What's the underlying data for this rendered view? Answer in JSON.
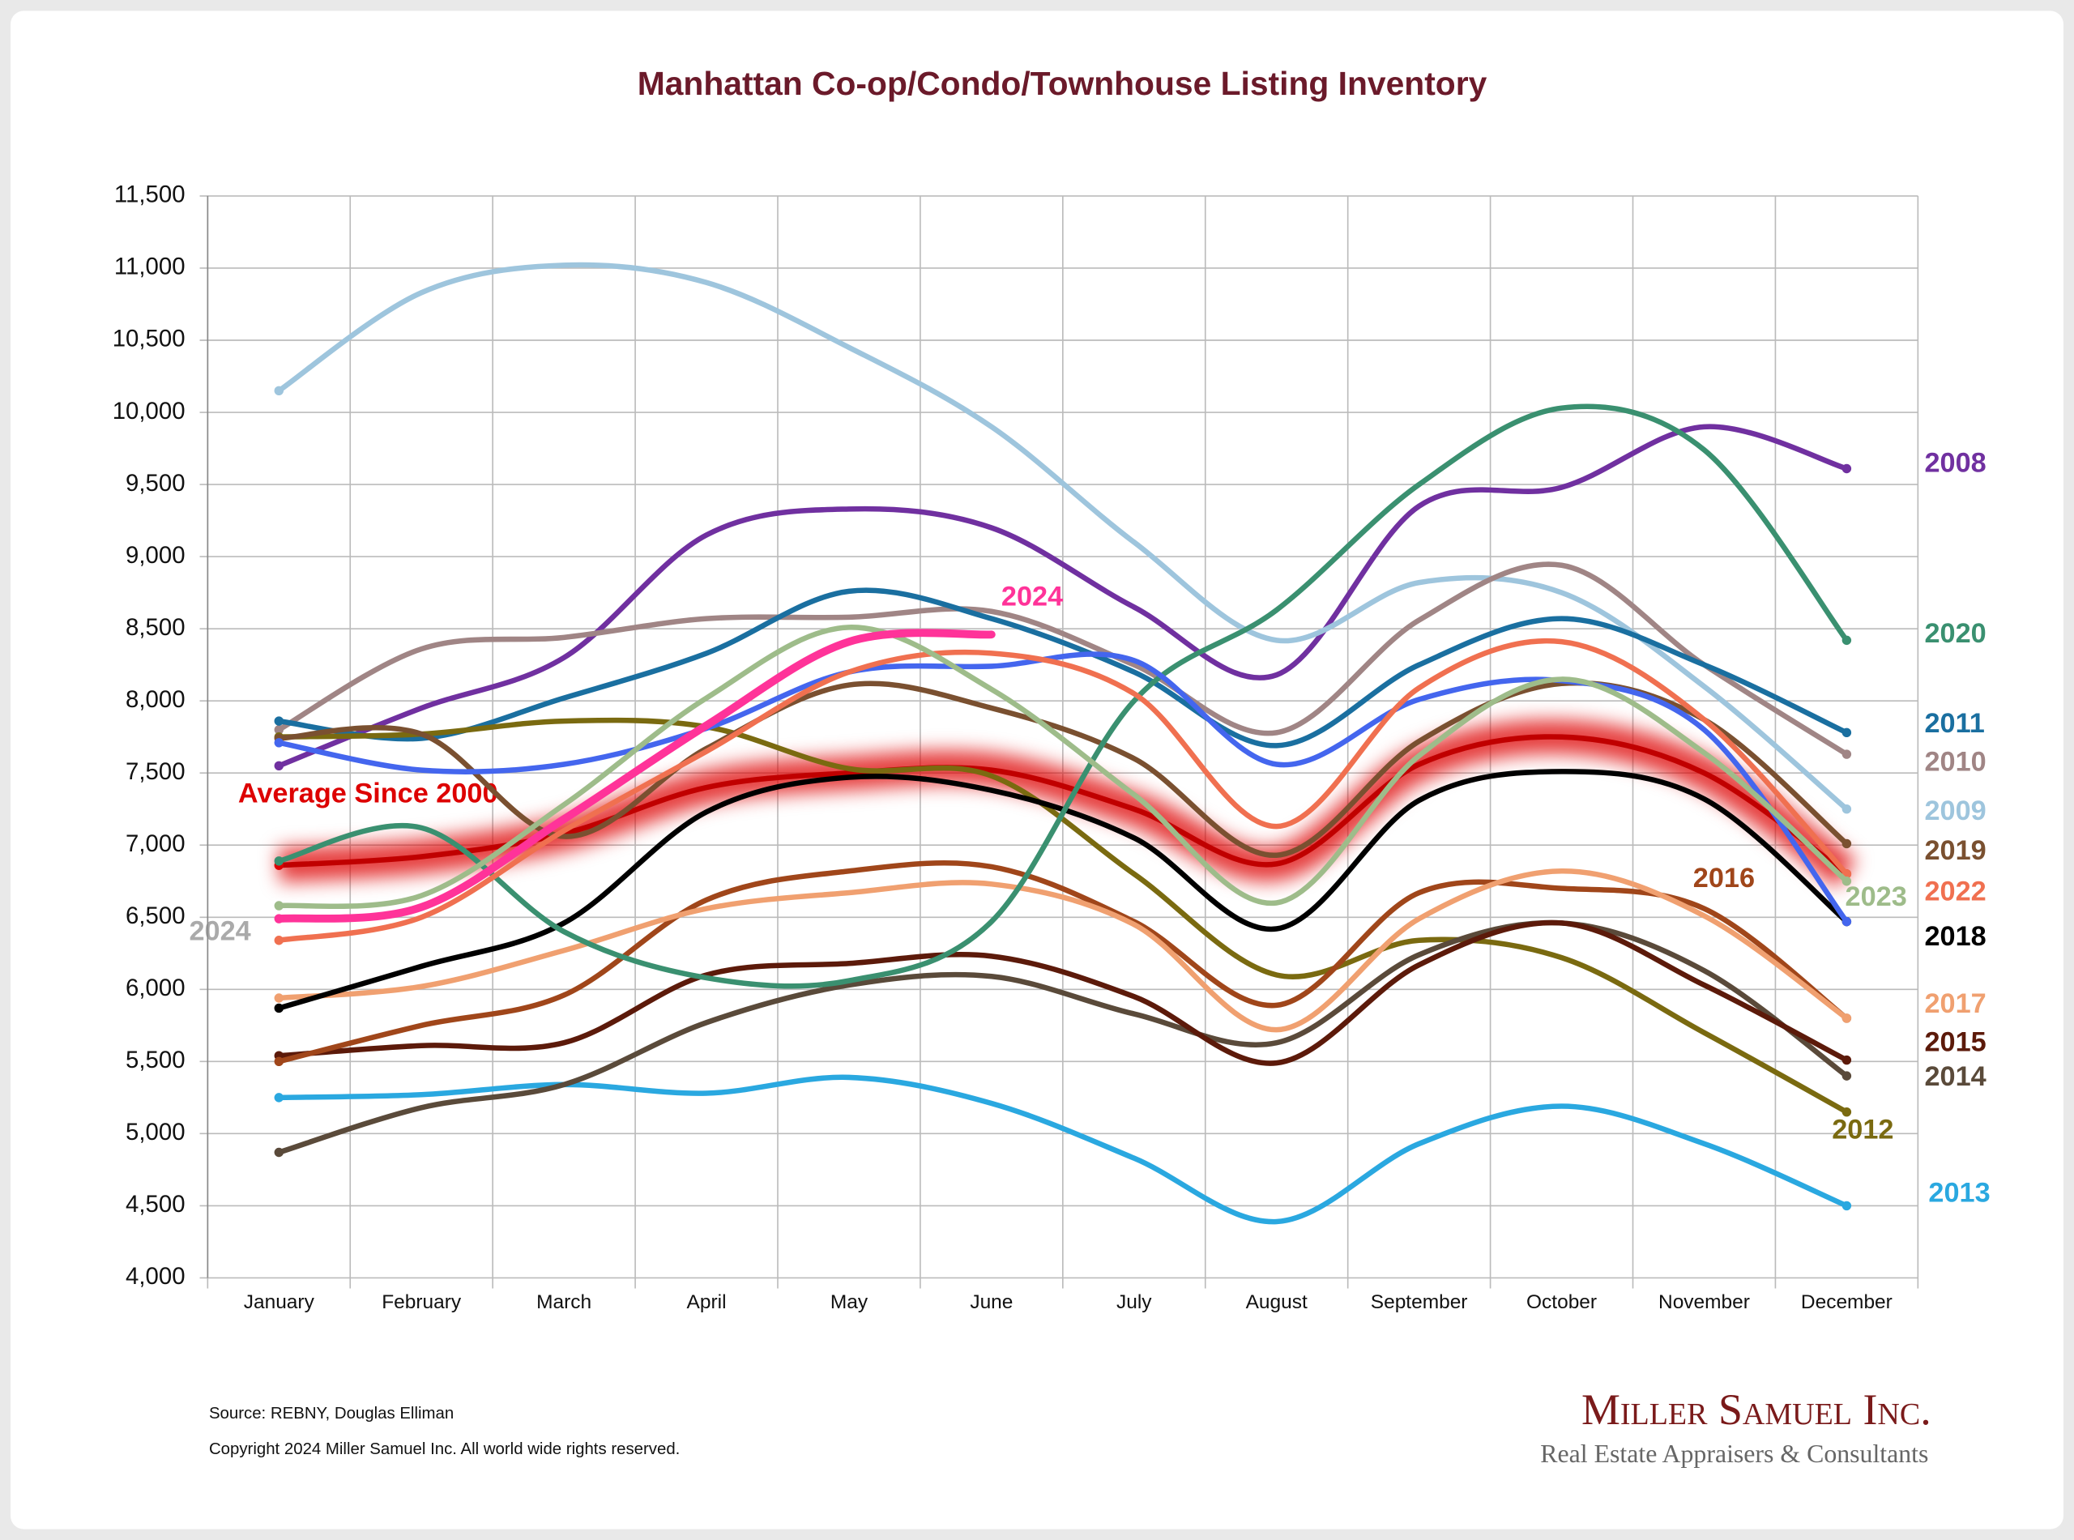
{
  "chart_data": {
    "type": "line",
    "title": "Manhattan Co-op/Condo/Townhouse Listing Inventory",
    "categories": [
      "January",
      "February",
      "March",
      "April",
      "May",
      "June",
      "July",
      "August",
      "September",
      "October",
      "November",
      "December"
    ],
    "ylim": [
      4000,
      11500
    ],
    "yticks": [
      {
        "value": 4000,
        "label": "4,000"
      },
      {
        "value": 4500,
        "label": "4,500"
      },
      {
        "value": 5000,
        "label": "5,000"
      },
      {
        "value": 5500,
        "label": "5,500"
      },
      {
        "value": 6000,
        "label": "6,000"
      },
      {
        "value": 6500,
        "label": "6,500"
      },
      {
        "value": 7000,
        "label": "7,000"
      },
      {
        "value": 7500,
        "label": "7,500"
      },
      {
        "value": 8000,
        "label": "8,000"
      },
      {
        "value": 8500,
        "label": "8,500"
      },
      {
        "value": 9000,
        "label": "9,000"
      },
      {
        "value": 9500,
        "label": "9,500"
      },
      {
        "value": 10000,
        "label": "10,000"
      },
      {
        "value": 10500,
        "label": "10,500"
      },
      {
        "value": 11000,
        "label": "11,000"
      },
      {
        "value": 11500,
        "label": "11,500"
      }
    ],
    "grid": true,
    "series": [
      {
        "name": "2008",
        "color": "#7030a0",
        "values": [
          7550,
          7950,
          8300,
          9150,
          9330,
          9200,
          8650,
          8180,
          9350,
          9480,
          9900,
          9610
        ]
      },
      {
        "name": "2009",
        "color": "#9ec5dd",
        "values": [
          10150,
          10830,
          11020,
          10900,
          10450,
          9900,
          9100,
          8420,
          8820,
          8750,
          8100,
          7250
        ]
      },
      {
        "name": "2010",
        "color": "#a08585",
        "values": [
          7800,
          8360,
          8440,
          8570,
          8580,
          8620,
          8250,
          7780,
          8560,
          8940,
          8250,
          7630
        ]
      },
      {
        "name": "2011",
        "color": "#1a6fa0",
        "values": [
          7860,
          7740,
          8020,
          8330,
          8760,
          8570,
          8200,
          7690,
          8250,
          8570,
          8250,
          7780
        ]
      },
      {
        "name": "2012",
        "color": "#7a6a10",
        "values": [
          7750,
          7770,
          7860,
          7820,
          7530,
          7480,
          6800,
          6100,
          6340,
          6220,
          5700,
          5150
        ]
      },
      {
        "name": "2013",
        "color": "#2aa8e0",
        "values": [
          5250,
          5270,
          5340,
          5280,
          5390,
          5210,
          4830,
          4390,
          4930,
          5190,
          4930,
          4500
        ]
      },
      {
        "name": "2014",
        "color": "#5a4a3a",
        "values": [
          4870,
          5180,
          5340,
          5770,
          6030,
          6090,
          5830,
          5630,
          6240,
          6460,
          6130,
          5400
        ]
      },
      {
        "name": "2015",
        "color": "#5c1a0a",
        "values": [
          5540,
          5610,
          5630,
          6100,
          6180,
          6230,
          5950,
          5490,
          6170,
          6460,
          6030,
          5510
        ]
      },
      {
        "name": "2016",
        "color": "#a0461a",
        "values": [
          5500,
          5750,
          5960,
          6620,
          6820,
          6850,
          6470,
          5890,
          6670,
          6700,
          6560,
          5800
        ]
      },
      {
        "name": "2017",
        "color": "#f0a070",
        "values": [
          5940,
          6020,
          6270,
          6560,
          6670,
          6730,
          6450,
          5720,
          6490,
          6820,
          6510,
          5800
        ]
      },
      {
        "name": "2018",
        "color": "#000000",
        "values": [
          5870,
          6160,
          6460,
          7230,
          7470,
          7380,
          7050,
          6420,
          7310,
          7510,
          7320,
          6470
        ]
      },
      {
        "name": "2019",
        "color": "#7a5030",
        "values": [
          7740,
          7770,
          7060,
          7670,
          8110,
          7950,
          7600,
          6930,
          7720,
          8120,
          7870,
          7010
        ]
      },
      {
        "name": "2020",
        "color": "#3a9070",
        "values": [
          6890,
          7120,
          6400,
          6080,
          6060,
          6470,
          8000,
          8630,
          9500,
          10030,
          9740,
          8420
        ]
      },
      {
        "color": "#4466ee",
        "values": [
          7710,
          7520,
          7560,
          7810,
          8200,
          8240,
          8280,
          7560,
          8010,
          8140,
          7800,
          6470
        ]
      },
      {
        "name": "2022",
        "color": "#f07050",
        "values": [
          6340,
          6500,
          7100,
          7650,
          8200,
          8330,
          8050,
          7130,
          8090,
          8410,
          7870,
          6800
        ]
      },
      {
        "name": "2023",
        "color": "#9ebc8a",
        "values": [
          6580,
          6650,
          7280,
          8020,
          8510,
          8080,
          7350,
          6600,
          7620,
          8150,
          7640,
          6750
        ]
      },
      {
        "name": "2024",
        "color": "#ff3399",
        "values": [
          6490,
          6570,
          7180,
          7830,
          8410,
          8460,
          null,
          null,
          null,
          null,
          null,
          null
        ]
      },
      {
        "name": "Average  Since 2000",
        "color": "#dd0000",
        "values": [
          6860,
          6920,
          7080,
          7400,
          7500,
          7520,
          7250,
          6870,
          7560,
          7750,
          7500,
          6800
        ]
      }
    ],
    "annotations": [
      "2024"
    ],
    "source": "Source: REBNY, Douglas Elliman",
    "copyright": "Copyright 2024 Miller Samuel Inc.  All world wide rights reserved.",
    "logo": {
      "name": "Miller Samuel Inc.",
      "tagline": "Real Estate Appraisers & Consultants"
    }
  }
}
